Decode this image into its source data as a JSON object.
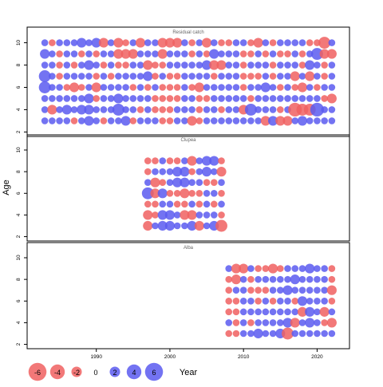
{
  "chart_data": {
    "type": "scatter",
    "ylabel": "Age",
    "xlabel": "Year",
    "xlim": [
      1980.6,
      2024.4
    ],
    "x_ticks": [
      "1990",
      "2000",
      "2010",
      "2020"
    ],
    "bubble_legend": {
      "labels": [
        "-6",
        "-4",
        "-2",
        "0",
        "2",
        "4",
        "6"
      ],
      "values": [
        -6,
        -4,
        -2,
        0,
        2,
        4,
        6
      ]
    },
    "colors": {
      "positive": "#5a5af0",
      "negative": "#f06060",
      "frame": "#000000"
    },
    "panels": [
      {
        "name": "Residual catch",
        "ylim": [
          1.6,
          11.4
        ],
        "y_ticks": [
          "2",
          "4",
          "6",
          "8",
          "10"
        ],
        "years": [
          1983,
          2022
        ],
        "ages": [
          3,
          10
        ],
        "rows": {
          "10": [
            1,
            -1,
            1,
            1,
            1,
            2,
            1,
            2,
            -2,
            1,
            -2,
            -1,
            1,
            -2,
            1,
            1,
            -2,
            -2,
            -2,
            1,
            -1,
            1,
            -2,
            1,
            -1,
            -1,
            1,
            1,
            -1,
            -2,
            1,
            -1,
            1,
            1,
            1,
            1,
            -1,
            -1,
            -3,
            1
          ],
          "9": [
            2,
            1,
            -1,
            1,
            1,
            -1,
            1,
            -1,
            1,
            1,
            -2,
            -2,
            -2,
            1,
            1,
            1,
            -2,
            1,
            1,
            1,
            -1,
            1,
            -1,
            2,
            1,
            1,
            1,
            -1,
            -1,
            1,
            -1,
            1,
            -1,
            -1,
            1,
            -1,
            1,
            3,
            -2,
            -2
          ],
          "8": [
            1,
            1,
            -1,
            1,
            -1,
            1,
            2,
            1,
            -1,
            1,
            -1,
            -1,
            1,
            1,
            -2,
            -1,
            -1,
            1,
            1,
            1,
            1,
            1,
            2,
            -2,
            -2,
            1,
            1,
            -1,
            1,
            1,
            1,
            -1,
            1,
            1,
            1,
            -1,
            2,
            1,
            -1,
            1
          ],
          "7": [
            3,
            1,
            -1,
            1,
            1,
            1,
            1,
            -1,
            1,
            -1,
            1,
            1,
            1,
            1,
            2,
            -1,
            1,
            -1,
            -1,
            1,
            1,
            1,
            1,
            -1,
            1,
            1,
            1,
            -1,
            -1,
            -1,
            1,
            -1,
            1,
            1,
            -2,
            1,
            -2,
            1,
            -1,
            1
          ],
          "6": [
            3,
            1,
            1,
            -1,
            -2,
            -1,
            1,
            -2,
            1,
            1,
            1,
            1,
            -1,
            1,
            -1,
            1,
            -1,
            -1,
            -1,
            1,
            -1,
            -2,
            1,
            1,
            1,
            1,
            1,
            -1,
            1,
            1,
            2,
            1,
            -1,
            1,
            -1,
            -2,
            1,
            -1,
            1,
            1
          ],
          "5": [
            1,
            1,
            1,
            1,
            1,
            1,
            2,
            -1,
            1,
            1,
            2,
            1,
            1,
            1,
            1,
            -1,
            -1,
            -1,
            -1,
            1,
            1,
            -1,
            -1,
            1,
            1,
            1,
            1,
            1,
            -1,
            1,
            1,
            1,
            1,
            1,
            1,
            1,
            1,
            1,
            -1,
            -2
          ],
          "4": [
            1,
            -2,
            1,
            2,
            1,
            2,
            2,
            1,
            1,
            1,
            3,
            1,
            1,
            -1,
            1,
            -1,
            -1,
            -1,
            1,
            1,
            1,
            -1,
            1,
            1,
            -1,
            1,
            1,
            -2,
            3,
            1,
            1,
            1,
            -1,
            1,
            -4,
            -3,
            -3,
            4,
            1,
            1
          ],
          "3": [
            1,
            1,
            1,
            1,
            -1,
            1,
            2,
            1,
            -1,
            1,
            1,
            2,
            -1,
            1,
            1,
            1,
            -1,
            -1,
            1,
            1,
            -2,
            -1,
            1,
            1,
            1,
            1,
            1,
            1,
            1,
            1,
            -2,
            2,
            -2,
            -2,
            1,
            2,
            1,
            1,
            1,
            1
          ]
        }
      },
      {
        "name": "Clupea",
        "ylim": [
          1.6,
          11.4
        ],
        "y_ticks": [
          "2",
          "4",
          "6",
          "8",
          "10"
        ],
        "years": [
          1997,
          2007
        ],
        "ages": [
          3,
          9
        ],
        "rows": {
          "9": [
            -1,
            -1,
            1,
            -1,
            -1,
            1,
            -2,
            1,
            2,
            2,
            -1
          ],
          "8": [
            -1,
            1,
            1,
            1,
            2,
            2,
            -1,
            1,
            2,
            1,
            -2
          ],
          "7": [
            1,
            -2,
            -1,
            1,
            2,
            2,
            1,
            1,
            -1,
            -1,
            1
          ],
          "6": [
            3,
            -2,
            2,
            -1,
            -1,
            -2,
            -1,
            -1,
            1,
            1,
            -1
          ],
          "5": [
            -1,
            -1,
            1,
            1,
            -1,
            -1,
            1,
            -1,
            1,
            -1,
            1
          ],
          "4": [
            -2,
            -1,
            2,
            2,
            1,
            -2,
            -2,
            1,
            1,
            1,
            -1
          ],
          "3": [
            -2,
            1,
            2,
            2,
            1,
            1,
            2,
            -2,
            1,
            2,
            -3
          ]
        }
      },
      {
        "name": "Alba",
        "ylim": [
          1.6,
          11.4
        ],
        "y_ticks": [
          "2",
          "4",
          "6",
          "8",
          "10"
        ],
        "years": [
          2008,
          2022
        ],
        "ages": [
          3,
          9
        ],
        "rows": {
          "9": [
            1,
            -2,
            -2,
            1,
            -1,
            -1,
            -2,
            -1,
            1,
            1,
            1,
            2,
            1,
            1,
            -1
          ],
          "8": [
            -1,
            -2,
            1,
            -1,
            1,
            1,
            1,
            1,
            1,
            2,
            1,
            1,
            1,
            1,
            -1
          ],
          "7": [
            -1,
            1,
            1,
            -1,
            -1,
            -1,
            1,
            1,
            2,
            1,
            1,
            1,
            1,
            1,
            -2
          ],
          "6": [
            -1,
            -1,
            1,
            1,
            -1,
            1,
            -1,
            1,
            1,
            -1,
            2,
            1,
            1,
            1,
            -1
          ],
          "5": [
            -1,
            -1,
            1,
            1,
            1,
            1,
            1,
            1,
            1,
            1,
            -2,
            2,
            1,
            -2,
            1
          ],
          "4": [
            1,
            -1,
            1,
            -1,
            1,
            1,
            1,
            1,
            2,
            -2,
            1,
            2,
            1,
            -1,
            -2
          ],
          "3": [
            -1,
            -1,
            1,
            1,
            2,
            1,
            1,
            2,
            -3,
            1,
            1,
            1,
            1,
            1,
            1
          ]
        }
      }
    ]
  }
}
